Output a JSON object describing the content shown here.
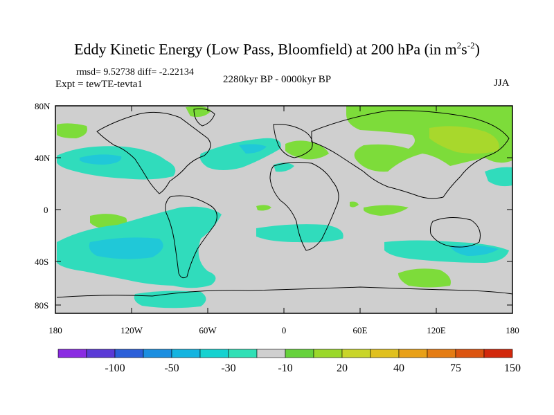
{
  "title": {
    "main": "Eddy Kinetic Energy (Low Pass, Bloomfield) at 200 hPa (in m",
    "sup1": "2",
    "mid": "s",
    "sup2": "-2",
    "end": ")"
  },
  "stats": {
    "rmsd": "rmsd= 9.52738 diff= -2.22134"
  },
  "experiment": "Expt = tewTE-tevta1",
  "period": "2280kyr BP - 0000kyr BP",
  "season": "JJA",
  "axes": {
    "lat_labels": [
      "80N",
      "40N",
      "0",
      "40S",
      "80S"
    ],
    "lon_labels": [
      "180",
      "120W",
      "60W",
      "0",
      "60E",
      "120E",
      "180"
    ]
  },
  "colorbar": {
    "colors": [
      "#8a2be2",
      "#5a3ad6",
      "#2b5fd9",
      "#1b8ee0",
      "#14b4e0",
      "#15d2d0",
      "#30e0b6",
      "#cfcfcf",
      "#66d23c",
      "#9ad82a",
      "#c9d52a",
      "#e0c01e",
      "#e8a018",
      "#e47c14",
      "#dc5410",
      "#d2280c"
    ],
    "labels": [
      "-100",
      "-50",
      "-30",
      "-10",
      "20",
      "40",
      "75",
      "150"
    ]
  },
  "colors": {
    "background": "#cfcfcf",
    "positive": "#7ddc3a",
    "positive_strong": "#a8d82c",
    "negative": "#30dcbc",
    "negative_strong": "#20c8d8"
  }
}
